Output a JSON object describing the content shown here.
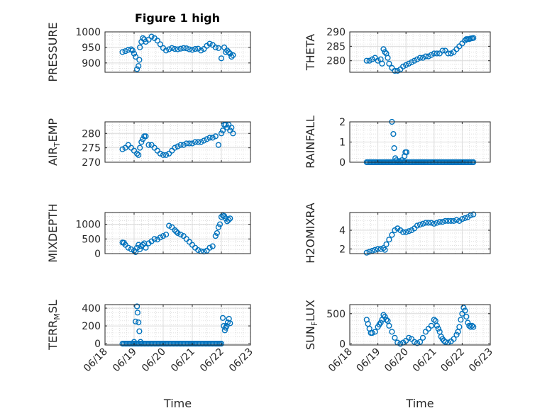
{
  "figure": {
    "title": "Figure 1 high"
  },
  "chart_data": [
    {
      "type": "scatter",
      "ylabel": "PRESSURE",
      "ylim": [
        870,
        1000
      ],
      "yticks": [
        900,
        950,
        1000
      ],
      "xlim": [
        0,
        5
      ],
      "marker_color": "#0072BD",
      "x": [
        0.6,
        0.7,
        0.8,
        0.9,
        0.95,
        1.0,
        1.05,
        1.1,
        1.15,
        1.18,
        1.2,
        1.25,
        1.3,
        1.35,
        1.4,
        1.5,
        1.6,
        1.7,
        1.8,
        1.9,
        2.0,
        2.1,
        2.2,
        2.3,
        2.4,
        2.5,
        2.6,
        2.7,
        2.8,
        2.9,
        3.0,
        3.1,
        3.2,
        3.3,
        3.4,
        3.5,
        3.6,
        3.7,
        3.8,
        3.9,
        4.0,
        4.1,
        4.15,
        4.2,
        4.25,
        4.3,
        4.35,
        4.4
      ],
      "y": [
        935,
        938,
        942,
        944,
        940,
        930,
        920,
        880,
        890,
        910,
        950,
        968,
        980,
        976,
        968,
        975,
        985,
        980,
        972,
        960,
        948,
        940,
        944,
        948,
        945,
        944,
        946,
        948,
        947,
        944,
        942,
        945,
        946,
        940,
        945,
        955,
        962,
        958,
        950,
        948,
        915,
        950,
        935,
        940,
        935,
        930,
        920,
        925
      ]
    },
    {
      "type": "scatter",
      "ylabel": "THETA",
      "ylim": [
        276,
        290
      ],
      "yticks": [
        280,
        285,
        290
      ],
      "xlim": [
        0,
        5
      ],
      "marker_color": "#0072BD",
      "x": [
        0.6,
        0.7,
        0.8,
        0.9,
        1.0,
        1.1,
        1.15,
        1.2,
        1.25,
        1.3,
        1.35,
        1.4,
        1.5,
        1.6,
        1.7,
        1.8,
        1.9,
        2.0,
        2.1,
        2.2,
        2.3,
        2.4,
        2.5,
        2.6,
        2.7,
        2.8,
        2.9,
        3.0,
        3.1,
        3.2,
        3.3,
        3.4,
        3.5,
        3.6,
        3.7,
        3.8,
        3.9,
        4.0,
        4.1,
        4.15,
        4.2,
        4.25,
        4.3,
        4.35,
        4.4
      ],
      "y": [
        280,
        280,
        280.5,
        281,
        280,
        280.5,
        279,
        284,
        283,
        282.5,
        281,
        279,
        277.5,
        276.5,
        276.5,
        277,
        278,
        278.5,
        279,
        279.5,
        280,
        280.5,
        281,
        281,
        281.5,
        281.5,
        282,
        282.5,
        282.5,
        282.5,
        283.5,
        283.5,
        282.5,
        282.5,
        283,
        284,
        285,
        286,
        287,
        287.5,
        287.5,
        287.5,
        287.7,
        287.8,
        287.9
      ]
    },
    {
      "type": "scatter",
      "ylabel": "AIR_TEMP",
      "ylim": [
        270,
        284
      ],
      "yticks": [
        270,
        275,
        280
      ],
      "xlim": [
        0,
        5
      ],
      "marker_color": "#0072BD",
      "x": [
        0.6,
        0.7,
        0.8,
        0.9,
        1.0,
        1.1,
        1.15,
        1.2,
        1.25,
        1.3,
        1.35,
        1.4,
        1.5,
        1.6,
        1.7,
        1.8,
        1.9,
        2.0,
        2.1,
        2.2,
        2.3,
        2.4,
        2.5,
        2.6,
        2.7,
        2.8,
        2.9,
        3.0,
        3.1,
        3.2,
        3.3,
        3.4,
        3.5,
        3.6,
        3.7,
        3.8,
        3.9,
        4.0,
        4.05,
        4.1,
        4.15,
        4.2,
        4.25,
        4.3,
        4.35,
        4.4
      ],
      "y": [
        274.5,
        275,
        276,
        275,
        274,
        273,
        272.5,
        275,
        277,
        278,
        279,
        279,
        276,
        276,
        275,
        274,
        273,
        272.5,
        272.5,
        273,
        274,
        275,
        275.5,
        276,
        276,
        276.5,
        276.5,
        276.5,
        277,
        277,
        277,
        277.5,
        278,
        278.5,
        278.5,
        279,
        276,
        280,
        281,
        283,
        283,
        282,
        283,
        281,
        282,
        280
      ]
    },
    {
      "type": "scatter",
      "ylabel": "RAINFALL",
      "ylim": [
        0,
        2
      ],
      "yticks": [
        0,
        1,
        2
      ],
      "xlim": [
        0,
        5
      ],
      "marker_color": "#0072BD",
      "x": [
        0.6,
        0.65,
        0.7,
        0.75,
        0.8,
        0.85,
        0.9,
        0.95,
        1.0,
        1.05,
        1.1,
        1.15,
        1.2,
        1.25,
        1.3,
        1.35,
        1.4,
        1.45,
        1.5,
        1.55,
        1.6,
        1.65,
        1.7,
        1.75,
        1.8,
        1.85,
        1.9,
        1.95,
        2.0,
        2.05,
        2.1,
        2.15,
        2.2,
        2.25,
        2.3,
        2.35,
        2.4,
        2.45,
        2.5,
        2.55,
        2.6,
        2.65,
        2.7,
        2.75,
        2.8,
        2.85,
        2.9,
        2.95,
        3.0,
        3.05,
        3.1,
        3.15,
        3.2,
        3.25,
        3.3,
        3.35,
        3.4,
        3.45,
        3.5,
        3.55,
        3.6,
        3.65,
        3.7,
        3.75,
        3.8,
        3.85,
        3.9,
        3.95,
        4.0,
        4.05,
        4.1,
        4.15,
        4.2,
        4.25,
        4.3,
        4.35,
        4.4,
        1.5,
        1.55,
        1.58,
        1.62,
        1.66,
        1.75,
        1.85,
        1.95,
        1.98,
        2.02
      ],
      "y": [
        0,
        0,
        0,
        0,
        0,
        0,
        0,
        0,
        0,
        0,
        0,
        0,
        0,
        0,
        0,
        0,
        0,
        0,
        0,
        0,
        0,
        0,
        0,
        0,
        0,
        0,
        0,
        0,
        0,
        0,
        0,
        0,
        0,
        0,
        0,
        0,
        0,
        0,
        0,
        0,
        0,
        0,
        0,
        0,
        0,
        0,
        0,
        0,
        0,
        0,
        0,
        0,
        0,
        0,
        0,
        0,
        0,
        0,
        0,
        0,
        0,
        0,
        0,
        0,
        0,
        0,
        0,
        0,
        0,
        0,
        0,
        0,
        0,
        0,
        0,
        0,
        0,
        2.0,
        1.4,
        0.7,
        0.2,
        0.1,
        0.05,
        0.1,
        0.3,
        0.5,
        0.5
      ]
    },
    {
      "type": "scatter",
      "ylabel": "MIXDEPTH",
      "ylim": [
        0,
        1400
      ],
      "yticks": [
        0,
        500,
        1000
      ],
      "xlim": [
        0,
        5
      ],
      "marker_color": "#0072BD",
      "x": [
        0.6,
        0.65,
        0.7,
        0.8,
        0.9,
        1.0,
        1.05,
        1.1,
        1.15,
        1.2,
        1.25,
        1.3,
        1.35,
        1.4,
        1.5,
        1.6,
        1.7,
        1.8,
        1.9,
        2.0,
        2.1,
        2.2,
        2.3,
        2.4,
        2.45,
        2.5,
        2.6,
        2.7,
        2.8,
        2.9,
        3.0,
        3.1,
        3.2,
        3.3,
        3.4,
        3.5,
        3.6,
        3.7,
        3.8,
        3.85,
        3.9,
        3.95,
        4.0,
        4.05,
        4.1,
        4.15,
        4.2,
        4.25,
        4.3
      ],
      "y": [
        380,
        370,
        300,
        200,
        150,
        100,
        50,
        200,
        300,
        150,
        250,
        300,
        350,
        200,
        350,
        420,
        500,
        480,
        550,
        600,
        650,
        950,
        900,
        800,
        750,
        700,
        650,
        600,
        500,
        400,
        300,
        200,
        120,
        80,
        70,
        100,
        200,
        250,
        600,
        700,
        900,
        1000,
        1250,
        1300,
        1280,
        1200,
        1100,
        1150,
        1200
      ]
    },
    {
      "type": "scatter",
      "ylabel": "H2OMIXRA",
      "ylim": [
        1.5,
        5.9
      ],
      "yticks": [
        2,
        4
      ],
      "xlim": [
        0,
        5
      ],
      "marker_color": "#0072BD",
      "x": [
        0.6,
        0.7,
        0.8,
        0.9,
        1.0,
        1.1,
        1.2,
        1.25,
        1.3,
        1.4,
        1.5,
        1.6,
        1.7,
        1.8,
        1.9,
        2.0,
        2.1,
        2.2,
        2.3,
        2.4,
        2.5,
        2.6,
        2.7,
        2.8,
        2.9,
        3.0,
        3.1,
        3.2,
        3.3,
        3.4,
        3.5,
        3.6,
        3.7,
        3.8,
        3.9,
        4.0,
        4.1,
        4.2,
        4.3,
        4.4
      ],
      "y": [
        1.6,
        1.7,
        1.8,
        1.9,
        2.0,
        2.0,
        2.1,
        1.9,
        2.5,
        3.0,
        3.5,
        4.0,
        4.2,
        4.0,
        3.8,
        3.8,
        3.9,
        4.0,
        4.2,
        4.5,
        4.6,
        4.7,
        4.8,
        4.8,
        4.8,
        4.7,
        4.8,
        4.9,
        4.9,
        5.0,
        5.0,
        5.0,
        5.0,
        5.1,
        5.0,
        5.2,
        5.3,
        5.4,
        5.6,
        5.7
      ]
    },
    {
      "type": "scatter",
      "ylabel": "TERR_MSL",
      "ylim": [
        -15,
        440
      ],
      "yticks": [
        0,
        200,
        400
      ],
      "xlim": [
        0,
        5
      ],
      "marker_color": "#0072BD",
      "x": [
        0.6,
        0.65,
        0.7,
        0.75,
        0.8,
        0.85,
        0.9,
        0.95,
        1.0,
        1.05,
        1.1,
        1.15,
        1.2,
        1.25,
        1.3,
        1.35,
        1.4,
        1.45,
        1.5,
        1.55,
        1.6,
        1.65,
        1.7,
        1.75,
        1.8,
        1.85,
        1.9,
        1.95,
        2.0,
        2.05,
        2.1,
        2.15,
        2.2,
        2.25,
        2.3,
        2.35,
        2.4,
        2.45,
        2.5,
        2.55,
        2.6,
        2.65,
        2.7,
        2.75,
        2.8,
        2.85,
        2.9,
        2.95,
        3.0,
        3.05,
        3.1,
        3.15,
        3.2,
        3.25,
        3.3,
        3.35,
        3.4,
        3.45,
        3.5,
        3.55,
        3.6,
        3.65,
        3.7,
        3.75,
        3.8,
        3.85,
        3.9,
        3.95,
        4.0,
        1.0,
        1.05,
        1.1,
        1.12,
        1.15,
        1.18,
        1.22,
        4.05,
        4.08,
        4.12,
        4.15,
        4.18,
        4.22,
        4.26,
        4.3
      ],
      "y": [
        0,
        0,
        0,
        0,
        0,
        0,
        0,
        0,
        0,
        0,
        0,
        0,
        0,
        0,
        0,
        0,
        0,
        0,
        0,
        0,
        0,
        0,
        0,
        0,
        0,
        0,
        0,
        0,
        0,
        0,
        0,
        0,
        0,
        0,
        0,
        0,
        0,
        0,
        0,
        0,
        0,
        0,
        0,
        0,
        0,
        0,
        0,
        0,
        0,
        0,
        0,
        0,
        0,
        0,
        0,
        0,
        0,
        0,
        0,
        0,
        0,
        0,
        0,
        0,
        0,
        0,
        0,
        0,
        0,
        20,
        250,
        420,
        350,
        240,
        140,
        20,
        290,
        200,
        150,
        180,
        200,
        240,
        280,
        230
      ]
    },
    {
      "type": "scatter",
      "ylabel": "SUN_FLUX",
      "ylim": [
        -20,
        650
      ],
      "yticks": [
        0,
        500
      ],
      "xlim": [
        0,
        5
      ],
      "marker_color": "#0072BD",
      "x": [
        0.6,
        0.65,
        0.7,
        0.75,
        0.8,
        0.9,
        1.0,
        1.05,
        1.1,
        1.15,
        1.2,
        1.25,
        1.3,
        1.35,
        1.4,
        1.5,
        1.6,
        1.7,
        1.8,
        1.9,
        2.0,
        2.1,
        2.2,
        2.3,
        2.4,
        2.5,
        2.6,
        2.7,
        2.8,
        2.9,
        3.0,
        3.05,
        3.1,
        3.15,
        3.2,
        3.25,
        3.3,
        3.35,
        3.4,
        3.5,
        3.6,
        3.7,
        3.8,
        3.85,
        3.9,
        3.95,
        4.0,
        4.05,
        4.1,
        4.15,
        4.2,
        4.25,
        4.3,
        4.35,
        4.4
      ],
      "y": [
        400,
        330,
        250,
        180,
        180,
        200,
        280,
        320,
        350,
        400,
        480,
        450,
        400,
        380,
        300,
        200,
        100,
        20,
        0,
        20,
        50,
        100,
        80,
        30,
        10,
        30,
        100,
        200,
        250,
        300,
        400,
        380,
        300,
        250,
        200,
        120,
        80,
        50,
        30,
        20,
        40,
        80,
        150,
        200,
        280,
        400,
        500,
        600,
        550,
        450,
        350,
        300,
        280,
        300,
        280
      ]
    }
  ],
  "x_axis": {
    "label": "Time",
    "tick_labels": [
      "06/18",
      "06/19",
      "06/20",
      "06/21",
      "06/22",
      "06/23"
    ]
  }
}
